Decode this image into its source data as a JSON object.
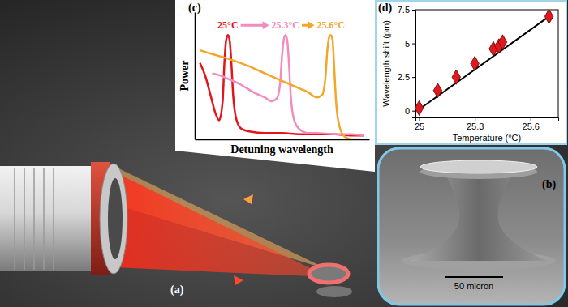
{
  "panel_labels": [
    "(a)",
    "(b)",
    "(c)",
    "(d)"
  ],
  "scale_bar": "50 micron",
  "chart_data": [
    {
      "type": "line",
      "x_label": "Detuning wavelength",
      "y_label": "Power",
      "xlim": [
        0,
        100
      ],
      "ylim": [
        0,
        1
      ],
      "tick_labels": false,
      "series": [
        {
          "name": "25°C",
          "color": "#e3141c",
          "x": [
            3,
            6,
            9,
            12,
            14,
            16,
            17,
            18,
            19,
            20,
            21,
            22,
            24,
            27,
            32,
            40,
            50,
            60,
            70,
            80,
            90,
            97
          ],
          "values": [
            0.6,
            0.5,
            0.35,
            0.2,
            0.15,
            0.3,
            0.6,
            0.78,
            0.82,
            0.78,
            0.6,
            0.35,
            0.15,
            0.08,
            0.06,
            0.05,
            0.05,
            0.04,
            0.04,
            0.04,
            0.03,
            0.03
          ]
        },
        {
          "name": "25.3°C",
          "color": "#f28cc0",
          "x": [
            10,
            15,
            20,
            25,
            30,
            35,
            40,
            44,
            47,
            49,
            50,
            51,
            52,
            53,
            54,
            55,
            57,
            60,
            65,
            70,
            80,
            90,
            97
          ],
          "values": [
            0.52,
            0.5,
            0.47,
            0.44,
            0.4,
            0.36,
            0.33,
            0.3,
            0.32,
            0.45,
            0.65,
            0.78,
            0.82,
            0.78,
            0.6,
            0.35,
            0.15,
            0.08,
            0.05,
            0.05,
            0.04,
            0.04,
            0.03
          ]
        },
        {
          "name": "25.6°C",
          "color": "#f2a62a",
          "x": [
            3,
            10,
            20,
            30,
            40,
            50,
            60,
            65,
            70,
            73,
            75,
            76,
            77,
            78,
            79,
            80,
            81,
            83,
            86,
            90,
            95
          ],
          "values": [
            0.7,
            0.67,
            0.63,
            0.58,
            0.52,
            0.46,
            0.4,
            0.37,
            0.33,
            0.35,
            0.5,
            0.7,
            0.8,
            0.82,
            0.78,
            0.55,
            0.3,
            0.1,
            0.02,
            0.0,
            0.0
          ]
        }
      ]
    },
    {
      "type": "scatter",
      "x_label": "Temperature (°C)",
      "y_label": "Wavelength shift (pm)",
      "xlim": [
        24.98,
        25.75
      ],
      "ylim": [
        -0.5,
        7.5
      ],
      "xticks": [
        25,
        25.3,
        25.6
      ],
      "yticks": [
        0,
        2.5,
        5,
        7.5
      ],
      "series": [
        {
          "type": "line",
          "color": "#000000",
          "line_style": "solid",
          "x": [
            25,
            25.7
          ],
          "values": [
            0.1,
            7.0
          ]
        },
        {
          "type": "scatter",
          "color": "#e0191e",
          "marker": "diamond",
          "x": [
            25,
            25.1,
            25.2,
            25.3,
            25.4,
            25.43,
            25.45,
            25.7
          ],
          "values": [
            0.2,
            1.5,
            2.5,
            3.5,
            4.6,
            4.8,
            5.1,
            7.0
          ]
        }
      ]
    }
  ]
}
